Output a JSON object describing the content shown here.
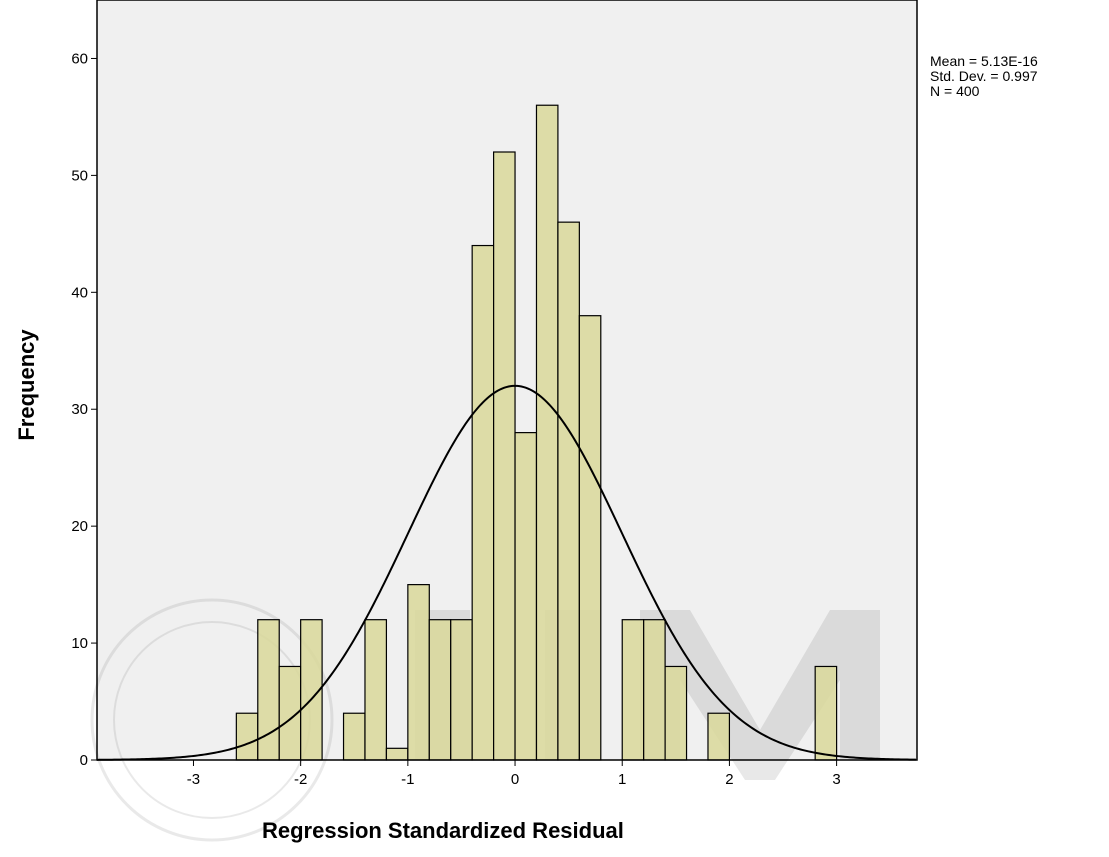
{
  "chart_data": {
    "type": "bar",
    "title": "",
    "xlabel": "Regression Standardized Residual",
    "ylabel": "Frequency",
    "xlim": [
      -3.9,
      3.75
    ],
    "ylim": [
      0,
      65
    ],
    "x_ticks": [
      -3,
      -2,
      -1,
      0,
      1,
      2,
      3
    ],
    "x_tick_labels": [
      "-3",
      "-2",
      "-1",
      "0",
      "1",
      "2",
      "3"
    ],
    "y_ticks": [
      0,
      10,
      20,
      30,
      40,
      50,
      60
    ],
    "y_tick_labels": [
      "0",
      "10",
      "20",
      "30",
      "40",
      "50",
      "60"
    ],
    "bin_width": 0.2,
    "bins": [
      {
        "start": -2.6,
        "value": 4
      },
      {
        "start": -2.4,
        "value": 12
      },
      {
        "start": -2.2,
        "value": 8
      },
      {
        "start": -2.0,
        "value": 12
      },
      {
        "start": -1.6,
        "value": 4
      },
      {
        "start": -1.4,
        "value": 12
      },
      {
        "start": -1.2,
        "value": 1
      },
      {
        "start": -1.0,
        "value": 15
      },
      {
        "start": -0.8,
        "value": 12
      },
      {
        "start": -0.6,
        "value": 12
      },
      {
        "start": -0.4,
        "value": 44
      },
      {
        "start": -0.2,
        "value": 52
      },
      {
        "start": 0.0,
        "value": 28
      },
      {
        "start": 0.2,
        "value": 56
      },
      {
        "start": 0.4,
        "value": 46
      },
      {
        "start": 0.6,
        "value": 38
      },
      {
        "start": 1.0,
        "value": 12
      },
      {
        "start": 1.2,
        "value": 12
      },
      {
        "start": 1.4,
        "value": 8
      },
      {
        "start": 1.8,
        "value": 4
      },
      {
        "start": 2.8,
        "value": 8
      }
    ],
    "normal_curve": {
      "mean": 0,
      "std_dev": 0.997,
      "peak": 32
    },
    "grid": false,
    "legend": "none",
    "colors": {
      "bar_fill": "#d9d89a",
      "bar_stroke": "#000000",
      "plot_bg": "#f0f0f0",
      "curve": "#000000"
    }
  },
  "stats": {
    "mean": "Mean = 5.13E-16",
    "std_dev": "Std. Dev. = 0.997",
    "n": "N = 400"
  }
}
